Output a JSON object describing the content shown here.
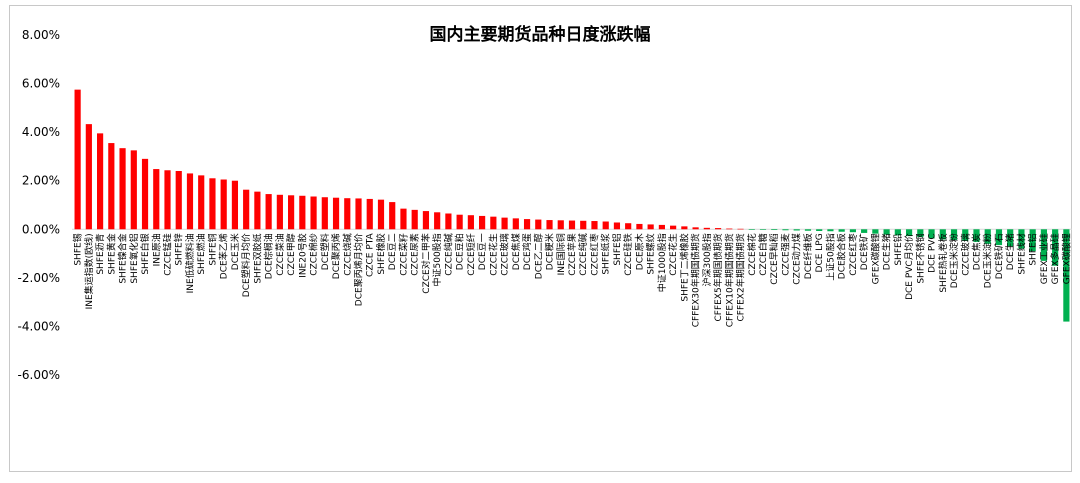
{
  "chart_data": {
    "type": "bar",
    "title": "国内主要期货品种日度涨跌幅",
    "xlabel": "",
    "ylabel": "",
    "ylim": [
      -0.06,
      0.08
    ],
    "yticks": [
      "-6.00%",
      "-4.00%",
      "-2.00%",
      "0.00%",
      "2.00%",
      "4.00%",
      "6.00%",
      "8.00%"
    ],
    "colors": {
      "positive": "#ff0000",
      "negative": "#00b050"
    },
    "grid": false,
    "legend": "none",
    "categories": [
      "SHFE锡",
      "INE集运指数(欧线)",
      "SHFE沥青",
      "SHFE黄金",
      "SHFE镍合金",
      "SHFE氧化铝",
      "SHFE白银",
      "INE原油",
      "CZCE锰硅",
      "SHFE锌",
      "INE低硫燃料油",
      "SHFE燃油",
      "SHFE铜",
      "DCE苯乙烯",
      "DCE玉米",
      "DCE塑料月均价",
      "SHFE双胶纸",
      "DCE棕榈油",
      "CZCE菜油",
      "CZCE甲醇",
      "INE20号胶",
      "CZCE棉纱",
      "DCE塑料",
      "DCE聚丙烯",
      "CZCE烧碱",
      "DCE聚丙烯月均价",
      "CZCE PTA",
      "SHFE橡胶",
      "DCE豆二",
      "CZCE菜籽",
      "CZCE尿素",
      "CZCE对二甲苯",
      "中证500股指",
      "CZCE纯碱",
      "DCE豆粕",
      "CZCE短纤",
      "DCE豆一",
      "CZCE花生",
      "CZCE玻璃",
      "DCE焦煤",
      "DCE鸡蛋",
      "DCE乙二醇",
      "DCE粳米",
      "INE国际铜",
      "CZCE苹果",
      "CZCE纯碱",
      "CZCE红枣",
      "SHFE纸浆",
      "SHFE铝",
      "CZCE硅铁",
      "DCE原木",
      "SHFE螺纹",
      "中证1000股指",
      "CZCE花生",
      "SHFE丁二烯橡胶",
      "CFFEX30年期国债期货",
      "沪深300股指",
      "CFFEX5年期国债期货",
      "CFFEX10年期国债期货",
      "CFFEX2年期国债期货",
      "CZCE棉花",
      "CZCE白糖",
      "CZCE早籼稻",
      "CZCE强麦",
      "CZCE动力煤",
      "DCE纤维板",
      "DCE LPG",
      "上证50股指",
      "DCE胶合板",
      "CZCE红枣",
      "DCE铁矿",
      "GFEX碳酸锂",
      "DCE生猪",
      "SHFE铅",
      "DCE PVC月均价",
      "SHFE不锈钢",
      "DCE PVC",
      "SHFE热轧卷板",
      "DCE玉米淀粉",
      "CZCE玻璃",
      "DCE焦炭",
      "DCE玉米淀粉",
      "DCE铁矿石",
      "DCE生猪",
      "SHFE线材",
      "SHFE铝",
      "GFEX工业硅",
      "GFEX多晶硅",
      "GFEX碳酸锂"
    ],
    "values": [
      0.0575,
      0.0433,
      0.0395,
      0.0355,
      0.0334,
      0.0325,
      0.029,
      0.0248,
      0.0243,
      0.024,
      0.023,
      0.0222,
      0.021,
      0.0205,
      0.02,
      0.0163,
      0.0155,
      0.0145,
      0.0142,
      0.014,
      0.0138,
      0.0135,
      0.0132,
      0.013,
      0.0128,
      0.0127,
      0.0125,
      0.0122,
      0.0112,
      0.0085,
      0.008,
      0.0075,
      0.007,
      0.0065,
      0.006,
      0.0058,
      0.0055,
      0.0052,
      0.0048,
      0.0045,
      0.0042,
      0.004,
      0.0038,
      0.0037,
      0.0036,
      0.0035,
      0.0034,
      0.0032,
      0.0028,
      0.0025,
      0.0022,
      0.002,
      0.0018,
      0.0015,
      0.0012,
      0.0008,
      0.0006,
      0.0005,
      0.0003,
      0.0002,
      -0.0001,
      -0.0002,
      -0.0003,
      -0.0004,
      -0.0005,
      -0.0006,
      -0.0007,
      -0.0008,
      -0.001,
      -0.0012,
      -0.0015,
      -0.0018,
      -0.0022,
      -0.0025,
      -0.0028,
      -0.0032,
      -0.0038,
      -0.0042,
      -0.0045,
      -0.0048,
      -0.0052,
      -0.006,
      -0.0065,
      -0.007,
      -0.008,
      -0.009,
      -0.013,
      -0.015,
      -0.038
    ]
  }
}
